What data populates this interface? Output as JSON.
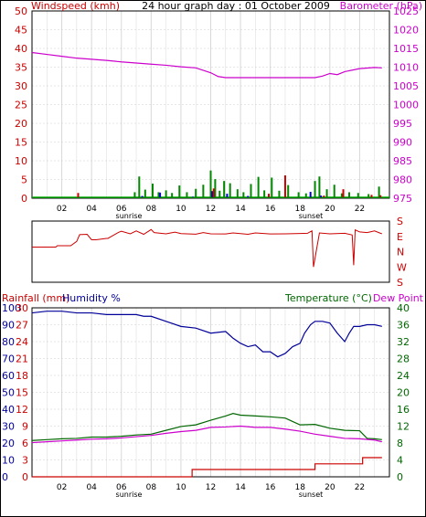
{
  "chart_data": [
    {
      "type": "line",
      "title": "24 hour graph day : 01 October 2009",
      "y_left_label": "Windspeed (kmh)",
      "y_right_label": "Barometer (hPa)",
      "y_left_ticks": [
        "50",
        "45",
        "40",
        "35",
        "30",
        "25",
        "20",
        "15",
        "10",
        "5",
        "0"
      ],
      "y_right_ticks": [
        "1025",
        "1020",
        "1015",
        "1010",
        "1005",
        "1000",
        "995",
        "990",
        "985",
        "980",
        "975"
      ],
      "x_ticks": [
        "02",
        "04",
        "06",
        "08",
        "10",
        "12",
        "14",
        "16",
        "18",
        "20",
        "22"
      ],
      "annotations": [
        "sunrise",
        "sunset"
      ],
      "ylim_left": [
        0,
        50
      ],
      "ylim_right": [
        975,
        1025
      ],
      "series": [
        {
          "name": "Barometer",
          "axis": "right",
          "color": "#cc00cc",
          "x": [
            0,
            1,
            2,
            3,
            4,
            5,
            6,
            7,
            8,
            9,
            10,
            11,
            12,
            12.5,
            13,
            14,
            15,
            16,
            17,
            18,
            19,
            19.5,
            20,
            20.5,
            21,
            22,
            23,
            23.5
          ],
          "y": [
            1013.9,
            1013.4,
            1012.9,
            1012.4,
            1012.1,
            1011.8,
            1011.4,
            1011.1,
            1010.8,
            1010.5,
            1010.1,
            1009.8,
            1008.5,
            1007.5,
            1007.2,
            1007.2,
            1007.2,
            1007.2,
            1007.2,
            1007.2,
            1007.2,
            1007.6,
            1008.3,
            1008.0,
            1008.8,
            1009.6,
            1009.9,
            1009.8
          ]
        }
      ],
      "bars": [
        {
          "name": "Wind gust",
          "color": "#008800",
          "x": [
            6.9,
            7.2,
            7.6,
            8.1,
            8.5,
            9.0,
            9.4,
            9.9,
            10.4,
            11.0,
            11.5,
            12.0,
            12.3,
            12.6,
            12.9,
            13.3,
            13.8,
            14.2,
            14.7,
            15.2,
            15.6,
            16.1,
            16.6,
            17.2,
            17.9,
            18.4,
            19.0,
            19.3,
            19.8,
            20.3,
            20.8,
            21.3,
            21.9,
            22.6,
            23.3
          ],
          "y": [
            1.6,
            5.8,
            2.3,
            3.9,
            1.6,
            2.1,
            1.4,
            3.4,
            1.6,
            2.5,
            3.6,
            7.4,
            5.1,
            2.0,
            4.6,
            4.0,
            2.4,
            1.6,
            3.8,
            5.7,
            2.1,
            5.5,
            2.0,
            3.5,
            1.6,
            1.3,
            4.6,
            5.8,
            2.4,
            3.6,
            1.3,
            1.6,
            1.4,
            1.1,
            3.1
          ]
        },
        {
          "name": "Wind average",
          "color": "#0000cc",
          "x": [
            7.4,
            8.6,
            10.8,
            12.1,
            13.1,
            14.5,
            15.9,
            18.7,
            19.4
          ],
          "y": [
            0.6,
            1.5,
            0.4,
            1.9,
            1.2,
            0.6,
            0.9,
            1.7,
            0.7
          ]
        },
        {
          "name": "Wind peak",
          "color": "#cc0000",
          "x": [
            3.1,
            12.2,
            15.9,
            17.0,
            19.6,
            20.9,
            22.8,
            23.4
          ],
          "y": [
            1.4,
            2.6,
            1.2,
            6.1,
            0.7,
            2.4,
            0.9,
            0.8
          ]
        }
      ]
    },
    {
      "type": "line",
      "y_right_ticks": [
        "S",
        "E",
        "N",
        "W",
        "S"
      ],
      "series": [
        {
          "name": "Wind direction",
          "color": "#cc0000",
          "x": [
            0,
            1.6,
            1.7,
            2.6,
            3.0,
            3.2,
            3.7,
            4.0,
            4.3,
            5.0,
            5.1,
            5.8,
            6.0,
            6.6,
            7.0,
            7.5,
            8.0,
            8.2,
            9.0,
            9.6,
            10.0,
            11.0,
            11.5,
            12.0,
            13.0,
            13.5,
            14.0,
            14.5,
            15.0,
            16.0,
            17.0,
            18.0,
            18.5,
            18.7,
            18.8,
            18.9,
            19.3,
            20.0,
            21.0,
            21.5,
            21.6,
            21.7,
            22.0,
            22.5,
            23.0,
            23.4,
            23.5
          ],
          "y": [
            207,
            207,
            215,
            215,
            240,
            280,
            282,
            250,
            250,
            258,
            258,
            293,
            300,
            285,
            302,
            282,
            310,
            292,
            285,
            295,
            286,
            283,
            292,
            285,
            284,
            290,
            286,
            282,
            290,
            284,
            285,
            287,
            288,
            298,
            302,
            90,
            290,
            285,
            288,
            278,
            100,
            308,
            296,
            292,
            302,
            288,
            285
          ]
        }
      ]
    },
    {
      "type": "line",
      "y_left_label": "Rainfall (mm)",
      "y_left_label2": "Humidity %",
      "y_right_label": "Temperature (°C)",
      "y_right_label2": "Dew Point",
      "humidity_ticks": [
        "100",
        "90",
        "80",
        "70",
        "60",
        "50",
        "40",
        "30",
        "20",
        "10",
        "0"
      ],
      "rain_ticks": [
        "30",
        "27",
        "24",
        "21",
        "18",
        "15",
        "12",
        "9",
        "6",
        "3",
        "0"
      ],
      "temp_ticks": [
        "40",
        "36",
        "32",
        "28",
        "24",
        "20",
        "16",
        "12",
        "8",
        "4",
        "0"
      ],
      "ylim_humidity": [
        0,
        100
      ],
      "ylim_rain": [
        0,
        30
      ],
      "ylim_temp": [
        0,
        40
      ],
      "series": [
        {
          "name": "Humidity",
          "axis": "humidity",
          "color": "#000099",
          "x": [
            0,
            1,
            2,
            3,
            4,
            5,
            6,
            7,
            7.5,
            8,
            9,
            10,
            11,
            12,
            13,
            13.5,
            14,
            14.5,
            15,
            15.5,
            16,
            16.5,
            17,
            17.5,
            18,
            18.3,
            18.7,
            19,
            19.5,
            20,
            20.5,
            21,
            21.3,
            21.6,
            22,
            22.5,
            23,
            23.5
          ],
          "y": [
            97,
            98,
            98,
            97,
            97,
            96,
            96,
            96,
            95,
            95,
            92,
            89,
            88,
            85,
            86,
            82,
            79,
            77,
            78,
            74,
            74,
            71,
            73,
            77,
            79,
            85,
            90,
            92,
            92,
            91,
            85,
            80,
            85,
            89,
            89,
            90,
            90,
            89
          ]
        },
        {
          "name": "Temperature",
          "axis": "temp",
          "color": "#006600",
          "x": [
            0,
            1,
            2,
            3,
            4,
            5,
            6,
            7,
            8,
            9,
            10,
            11,
            12,
            13,
            13.5,
            14,
            15,
            16,
            17,
            17.5,
            18,
            19,
            20,
            21,
            22,
            22.5,
            23,
            23.5
          ],
          "y": [
            8.6,
            8.8,
            9.0,
            9.1,
            9.4,
            9.4,
            9.6,
            9.9,
            10.1,
            11.0,
            11.9,
            12.3,
            13.4,
            14.4,
            15.0,
            14.6,
            14.4,
            14.2,
            13.9,
            13.1,
            12.3,
            12.4,
            11.5,
            11.0,
            10.9,
            9.1,
            9.0,
            8.8
          ]
        },
        {
          "name": "Dew Point",
          "axis": "temp",
          "color": "#cc00cc",
          "x": [
            0,
            1,
            2,
            3,
            4,
            5,
            6,
            7,
            8,
            9,
            10,
            11,
            12,
            13,
            14,
            15,
            16,
            17,
            18,
            19,
            20,
            21,
            22,
            23,
            23.5
          ],
          "y": [
            8.1,
            8.3,
            8.5,
            8.7,
            8.9,
            9.0,
            9.2,
            9.5,
            9.8,
            10.3,
            10.7,
            11.0,
            11.7,
            11.8,
            12.0,
            11.7,
            11.7,
            11.3,
            10.8,
            10.1,
            9.6,
            9.1,
            9.0,
            8.7,
            8.3
          ]
        },
        {
          "name": "Rainfall",
          "axis": "rain",
          "color": "#cc0000",
          "x": [
            0,
            10.75,
            10.75,
            19.0,
            19.0,
            22.2,
            22.2,
            23.5
          ],
          "y": [
            0,
            0,
            1.3,
            1.3,
            2.3,
            2.3,
            3.4,
            3.4
          ]
        }
      ]
    }
  ]
}
